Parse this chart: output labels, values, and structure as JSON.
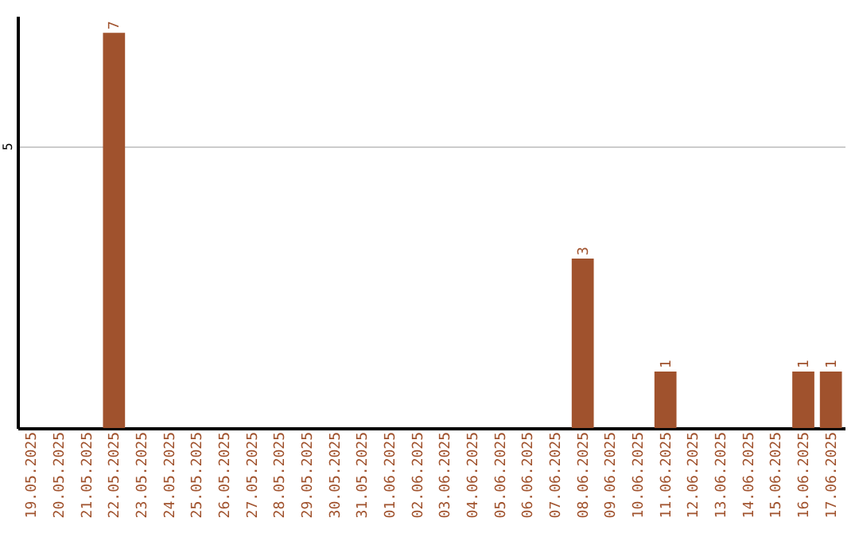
{
  "chart_data": {
    "type": "bar",
    "categories": [
      "19.05.2025",
      "20.05.2025",
      "21.05.2025",
      "22.05.2025",
      "23.05.2025",
      "24.05.2025",
      "25.05.2025",
      "26.05.2025",
      "27.05.2025",
      "28.05.2025",
      "29.05.2025",
      "30.05.2025",
      "31.05.2025",
      "01.06.2025",
      "02.06.2025",
      "03.06.2025",
      "04.06.2025",
      "05.06.2025",
      "06.06.2025",
      "07.06.2025",
      "08.06.2025",
      "09.06.2025",
      "10.06.2025",
      "11.06.2025",
      "12.06.2025",
      "13.06.2025",
      "14.06.2025",
      "15.06.2025",
      "16.06.2025",
      "17.06.2025"
    ],
    "values": [
      0,
      0,
      0,
      7,
      0,
      0,
      0,
      0,
      0,
      0,
      0,
      0,
      0,
      0,
      0,
      0,
      0,
      0,
      0,
      0,
      3,
      0,
      0,
      1,
      0,
      0,
      0,
      0,
      1,
      1
    ],
    "value_labels": [
      null,
      null,
      null,
      "7",
      null,
      null,
      null,
      null,
      null,
      null,
      null,
      null,
      null,
      null,
      null,
      null,
      null,
      null,
      null,
      null,
      "3",
      null,
      null,
      "1",
      null,
      null,
      null,
      null,
      "1",
      "1"
    ],
    "color": "#a0522d",
    "ylim": [
      0,
      7.3
    ],
    "yticks": [
      5
    ],
    "grid": "y"
  }
}
